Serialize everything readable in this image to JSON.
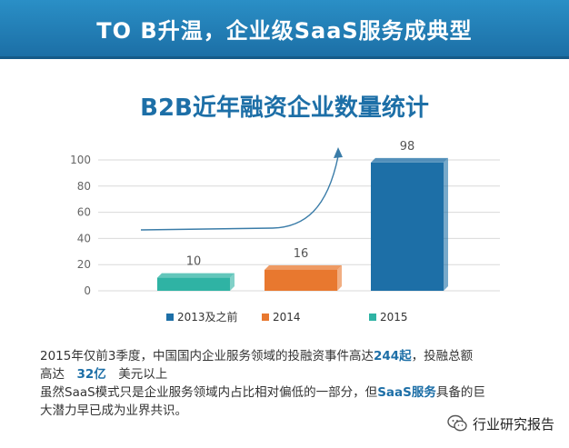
{
  "banner": {
    "title": "TO B升温，企业级SaaS服务成典型"
  },
  "chart_data": {
    "type": "bar",
    "title": "B2B近年融资企业数量统计",
    "categories": [
      "2013及之前",
      "2014",
      "2015"
    ],
    "values": [
      98,
      16,
      10
    ],
    "yticks": [
      0,
      20,
      40,
      60,
      80,
      100
    ],
    "ylim": [
      0,
      100
    ],
    "grid": true,
    "legend_position": "bottom",
    "colors": {
      "2013及之前": "#1d6fa7",
      "2014": "#e8782f",
      "2015": "#2fb3a4"
    }
  },
  "text": {
    "line1_a": "2015年仅前3季度，中国国内企业服务领域的投融资事件高达",
    "line1_num": "244起",
    "line1_b": "，投融总额",
    "line2_a": "高达",
    "line2_num": "32亿",
    "line2_b": "美元以上",
    "line3_a": "虽然SaaS模式只是企业服务领域内占比相对偏低的一部分，但",
    "line3_hl": "SaaS服务",
    "line3_b": "具备的巨",
    "line4": "大潜力早已成为业界共识。"
  },
  "watermark": {
    "label": "行业研究报告",
    "icon": "wechat-icon"
  }
}
